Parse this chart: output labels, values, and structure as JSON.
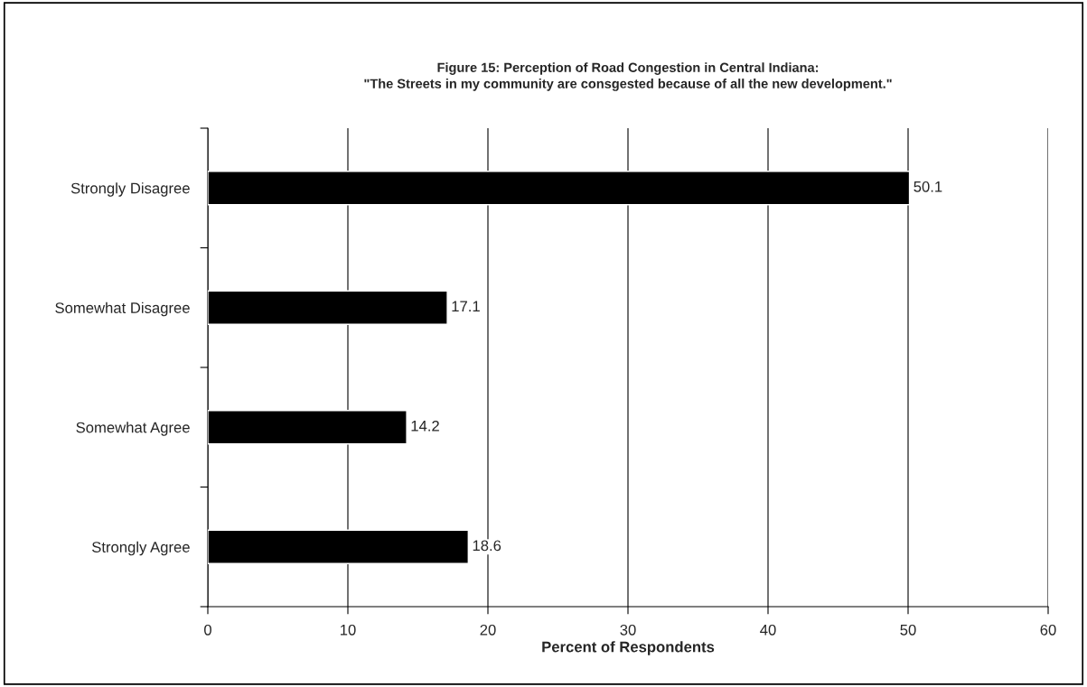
{
  "chart_data": {
    "type": "bar",
    "orientation": "horizontal",
    "title": "Figure 15: Perception of Road Congestion in Central Indiana:\n\"The Streets in my community are consgested because of all the new development.\"",
    "xlabel": "Percent of Respondents",
    "categories": [
      "Strongly Disagree",
      "Somewhat Disagree",
      "Somewhat Agree",
      "Strongly Agree"
    ],
    "values": [
      50.1,
      17.1,
      14.2,
      18.6
    ],
    "color": "#000000",
    "xlim": [
      0,
      60
    ],
    "xticks": [
      0,
      10,
      20,
      30,
      40,
      50,
      60
    ],
    "grid": "x",
    "data_labels": true,
    "legend": false
  }
}
